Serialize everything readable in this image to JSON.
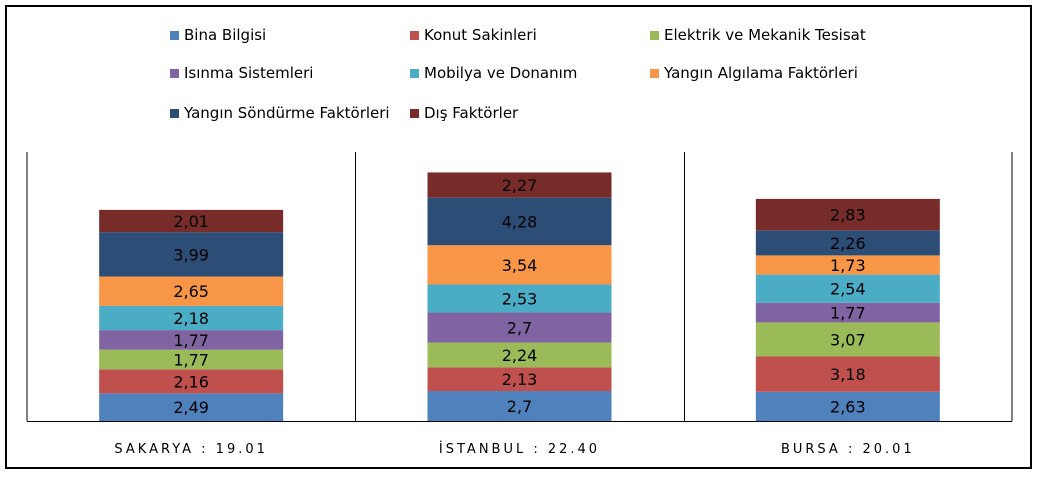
{
  "chart_data": {
    "type": "bar",
    "stacked": true,
    "title": "",
    "xlabel": "",
    "ylabel": "",
    "grid": false,
    "legend_position": "top",
    "categories": [
      "SAKARYA : 19.01",
      "İSTANBUL : 22.40",
      "BURSA : 20.01"
    ],
    "series": [
      {
        "name": "Bina Bilgisi",
        "color": "#4F81BD",
        "values": [
          2.49,
          2.7,
          2.63
        ],
        "labels": [
          "2,49",
          "2,7",
          "2,63"
        ]
      },
      {
        "name": "Konut Sakinleri",
        "color": "#C0504D",
        "values": [
          2.16,
          2.13,
          3.18
        ],
        "labels": [
          "2,16",
          "2,13",
          "3,18"
        ]
      },
      {
        "name": "Elektrik ve Mekanik Tesisat",
        "color": "#9BBB59",
        "values": [
          1.77,
          2.24,
          3.07
        ],
        "labels": [
          "1,77",
          "2,24",
          "3,07"
        ]
      },
      {
        "name": "Isınma Sistemleri",
        "color": "#8064A2",
        "values": [
          1.77,
          2.7,
          1.77
        ],
        "labels": [
          "1,77",
          "2,7",
          "1,77"
        ]
      },
      {
        "name": "Mobilya ve Donanım",
        "color": "#4BACC6",
        "values": [
          2.18,
          2.53,
          2.54
        ],
        "labels": [
          "2,18",
          "2,53",
          "2,54"
        ]
      },
      {
        "name": "Yangın Algılama Faktörleri",
        "color": "#F79646",
        "values": [
          2.65,
          3.54,
          1.73
        ],
        "labels": [
          "2,65",
          "3,54",
          "1,73"
        ]
      },
      {
        "name": "Yangın Söndürme Faktörleri",
        "color": "#2C4D75",
        "values": [
          3.99,
          4.28,
          2.26
        ],
        "labels": [
          "3,99",
          "4,28",
          "2,26"
        ]
      },
      {
        "name": "Dış Faktörler",
        "color": "#772C2A",
        "values": [
          2.01,
          2.27,
          2.83
        ],
        "labels": [
          "2,01",
          "2,27",
          "2,83"
        ]
      }
    ]
  }
}
